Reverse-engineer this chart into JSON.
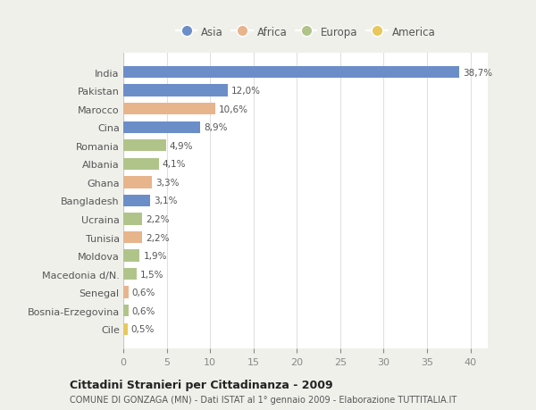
{
  "categories": [
    "India",
    "Pakistan",
    "Marocco",
    "Cina",
    "Romania",
    "Albania",
    "Ghana",
    "Bangladesh",
    "Ucraina",
    "Tunisia",
    "Moldova",
    "Macedonia d/N.",
    "Senegal",
    "Bosnia-Erzegovina",
    "Cile"
  ],
  "values": [
    38.7,
    12.0,
    10.6,
    8.9,
    4.9,
    4.1,
    3.3,
    3.1,
    2.2,
    2.2,
    1.9,
    1.5,
    0.6,
    0.6,
    0.5
  ],
  "labels": [
    "38,7%",
    "12,0%",
    "10,6%",
    "8,9%",
    "4,9%",
    "4,1%",
    "3,3%",
    "3,1%",
    "2,2%",
    "2,2%",
    "1,9%",
    "1,5%",
    "0,6%",
    "0,6%",
    "0,5%"
  ],
  "colors": [
    "#6b8ec9",
    "#6b8ec9",
    "#e8b48c",
    "#6b8ec9",
    "#b0c48a",
    "#b0c48a",
    "#e8b48c",
    "#6b8ec9",
    "#b0c48a",
    "#e8b48c",
    "#b0c48a",
    "#b0c48a",
    "#e8b48c",
    "#b0c48a",
    "#e8c85c"
  ],
  "legend_labels": [
    "Asia",
    "Africa",
    "Europa",
    "America"
  ],
  "legend_colors": [
    "#6b8ec9",
    "#e8b48c",
    "#b0c48a",
    "#e8c85c"
  ],
  "title": "Cittadini Stranieri per Cittadinanza - 2009",
  "subtitle": "COMUNE DI GONZAGA (MN) - Dati ISTAT al 1° gennaio 2009 - Elaborazione TUTTITALIA.IT",
  "xlim": [
    0,
    42
  ],
  "xticks": [
    0,
    5,
    10,
    15,
    20,
    25,
    30,
    35,
    40
  ],
  "bg_color": "#f0f0eb",
  "plot_bg_color": "#ffffff",
  "grid_color": "#e0e0e0",
  "label_color": "#888888",
  "text_color": "#555555"
}
